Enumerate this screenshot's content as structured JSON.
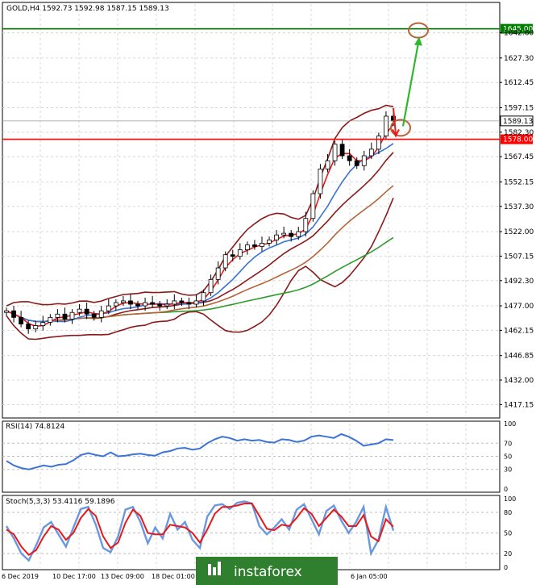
{
  "chart_data": [
    {
      "type": "candlestick",
      "panel": "main",
      "title": "GOLD,H4  1592.73 1592.98 1587.15 1589.13",
      "symbol": "GOLD",
      "timeframe": "H4",
      "ohlc": {
        "open": 1592.73,
        "high": 1592.98,
        "low": 1587.15,
        "close": 1589.13
      },
      "ylim": [
        1410.0,
        1660.0
      ],
      "y_ticks": [
        "1642.60",
        "1627.30",
        "1612.45",
        "1597.15",
        "1582.30",
        "1567.45",
        "1552.15",
        "1537.30",
        "1522.00",
        "1507.15",
        "1492.30",
        "1477.00",
        "1462.15",
        "1446.85",
        "1432.00",
        "1417.15"
      ],
      "x_ticks": [
        "6 Dec 2019",
        "10 Dec 17:00",
        "13 Dec 09:00",
        "18 Dec 01:00",
        "6 Jan 05:00"
      ],
      "current_price_label": "1589.13",
      "horizontal_levels": [
        {
          "label": "1645.00",
          "value": 1645.0,
          "color": "#008000"
        },
        {
          "label": "1578.00",
          "value": 1578.0,
          "color": "#ff0000"
        }
      ],
      "close_series": [
        1474,
        1470,
        1466,
        1463,
        1465,
        1467,
        1470,
        1472,
        1469,
        1473,
        1475,
        1472,
        1470,
        1474,
        1477,
        1479,
        1480,
        1478,
        1477,
        1479,
        1478,
        1477,
        1478,
        1480,
        1479,
        1478,
        1480,
        1485,
        1493,
        1500,
        1508,
        1507,
        1511,
        1514,
        1513,
        1515,
        1517,
        1520,
        1521,
        1519,
        1522,
        1530,
        1545,
        1560,
        1565,
        1575,
        1568,
        1565,
        1562,
        1568,
        1572,
        1580,
        1592,
        1589.13
      ],
      "series": [
        {
          "name": "Moving Average (red)",
          "color": "#e41a1c"
        },
        {
          "name": "Moving Average (blue)",
          "color": "#3b73d6"
        },
        {
          "name": "Bollinger Bands",
          "color": "#8b1a1a"
        },
        {
          "name": "Moving Average (brown)",
          "color": "#b5653a"
        },
        {
          "name": "Moving Average (green)",
          "color": "#2e9b2e"
        }
      ],
      "annotations": [
        {
          "kind": "projection-arrow",
          "color": "#2db82d",
          "from_value": 1582.0,
          "to_value": 1645.0
        },
        {
          "kind": "pullback-arrow",
          "color": "#e41a1c",
          "to_value": 1582.0
        }
      ]
    },
    {
      "type": "line",
      "panel": "rsi",
      "title": "RSI(14) 74.8124",
      "indicator": "RSI(14)",
      "value": 74.8124,
      "ylim": [
        0,
        100
      ],
      "y_ticks": [
        "100",
        "70",
        "50",
        "30",
        "0"
      ],
      "levels": [
        70,
        50,
        30
      ],
      "series": [
        {
          "name": "RSI(14)",
          "color": "#3b73d6",
          "values": [
            43,
            36,
            32,
            30,
            33,
            36,
            34,
            37,
            38,
            44,
            52,
            55,
            52,
            50,
            56,
            50,
            51,
            53,
            54,
            52,
            51,
            56,
            58,
            62,
            63,
            60,
            62,
            70,
            76,
            80,
            78,
            74,
            76,
            74,
            75,
            72,
            71,
            76,
            75,
            72,
            74,
            80,
            82,
            80,
            78,
            84,
            80,
            74,
            66,
            68,
            70,
            76,
            74.81
          ]
        }
      ]
    },
    {
      "type": "line",
      "panel": "stochastic",
      "title": "Stoch(5,3,3) 53.4116 59.1896",
      "indicator": "Stoch(5,3,3)",
      "values_shown": [
        53.4116,
        59.1896
      ],
      "ylim": [
        0,
        100
      ],
      "y_ticks": [
        "100",
        "80",
        "50",
        "20",
        "0"
      ],
      "levels": [
        80,
        50,
        20
      ],
      "series": [
        {
          "name": "%K",
          "color": "#6a98e0",
          "values": [
            60,
            42,
            20,
            10,
            32,
            58,
            66,
            48,
            30,
            58,
            85,
            88,
            62,
            28,
            22,
            45,
            84,
            88,
            66,
            35,
            58,
            42,
            78,
            55,
            66,
            40,
            28,
            74,
            90,
            92,
            85,
            94,
            96,
            93,
            60,
            48,
            58,
            70,
            55,
            84,
            92,
            70,
            48,
            82,
            90,
            68,
            50,
            66,
            88,
            20,
            40,
            88,
            53.41
          ]
        },
        {
          "name": "%D",
          "color": "#e41a1c",
          "values": [
            55,
            48,
            30,
            18,
            25,
            45,
            60,
            55,
            40,
            50,
            72,
            85,
            75,
            45,
            28,
            36,
            65,
            84,
            75,
            50,
            48,
            48,
            62,
            60,
            58,
            50,
            36,
            55,
            78,
            88,
            88,
            90,
            93,
            93,
            75,
            56,
            54,
            62,
            60,
            72,
            86,
            78,
            60,
            72,
            84,
            74,
            60,
            60,
            76,
            45,
            38,
            70,
            59.19
          ]
        }
      ]
    }
  ],
  "watermark": "instaforex"
}
